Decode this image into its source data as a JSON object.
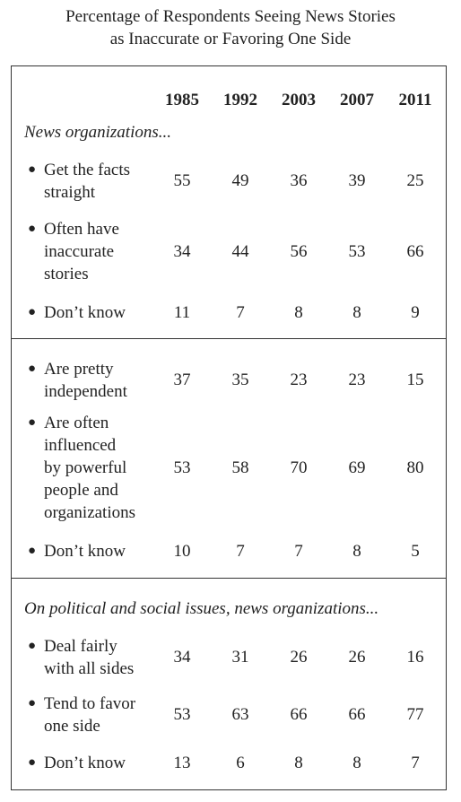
{
  "chart_data": {
    "type": "table",
    "title": [
      "Percentage of Respondents Seeing News Stories",
      "as Inaccurate or Favoring One Side"
    ],
    "columns": [
      "1985",
      "1992",
      "2003",
      "2007",
      "2011"
    ],
    "sections": [
      {
        "label": "News organizations...",
        "rows": [
          {
            "label": [
              "Get the facts",
              "straight"
            ],
            "values": [
              55,
              49,
              36,
              39,
              25
            ]
          },
          {
            "label": [
              "Often have",
              "inaccurate",
              "stories"
            ],
            "values": [
              34,
              44,
              56,
              53,
              66
            ]
          },
          {
            "label": [
              "Don’t know"
            ],
            "values": [
              11,
              7,
              8,
              8,
              9
            ]
          }
        ]
      },
      {
        "label": "",
        "rows": [
          {
            "label": [
              "Are pretty",
              "independent"
            ],
            "values": [
              37,
              35,
              23,
              23,
              15
            ]
          },
          {
            "label": [
              "Are often",
              "influenced",
              "by powerful",
              "people and",
              "organizations"
            ],
            "values": [
              53,
              58,
              70,
              69,
              80
            ]
          },
          {
            "label": [
              "Don’t know"
            ],
            "values": [
              10,
              7,
              7,
              8,
              5
            ]
          }
        ]
      },
      {
        "label": "On political and social issues, news organizations...",
        "rows": [
          {
            "label": [
              "Deal fairly",
              "with all sides"
            ],
            "values": [
              34,
              31,
              26,
              26,
              16
            ]
          },
          {
            "label": [
              "Tend to favor",
              "one side"
            ],
            "values": [
              53,
              63,
              66,
              66,
              77
            ]
          },
          {
            "label": [
              "Don’t know"
            ],
            "values": [
              13,
              6,
              8,
              8,
              7
            ]
          }
        ]
      }
    ]
  }
}
